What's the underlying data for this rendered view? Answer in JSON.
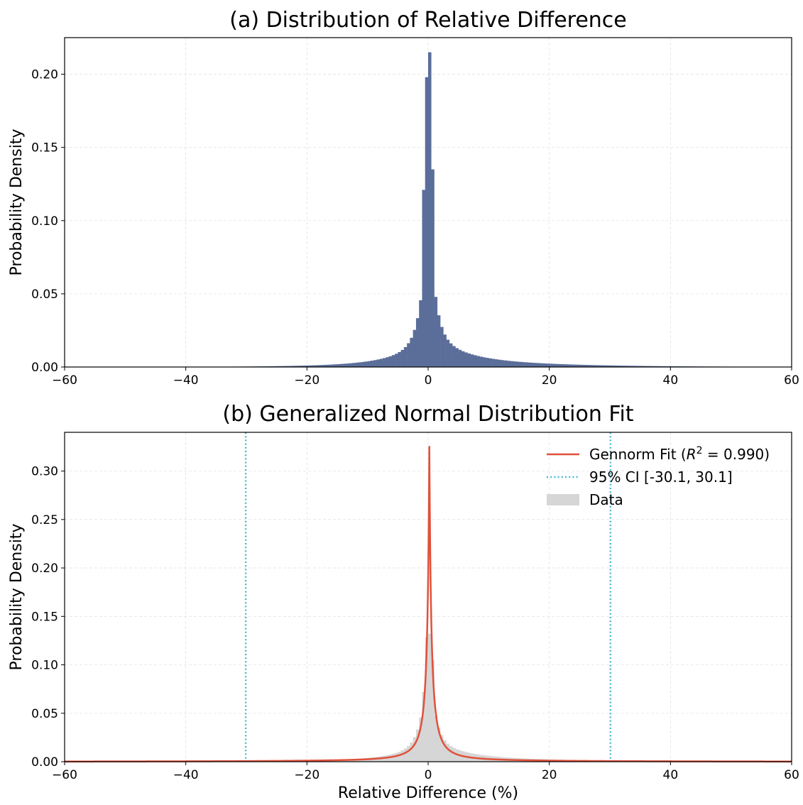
{
  "chart_data": [
    {
      "type": "bar",
      "title": "(a) Distribution of Relative Difference",
      "xlabel": "",
      "ylabel": "Probability Density",
      "xlim": [
        -60,
        60
      ],
      "ylim": [
        0,
        0.225
      ],
      "xticks": [
        -60,
        -40,
        -20,
        0,
        20,
        40,
        60
      ],
      "xtick_labels": [
        "−60",
        "−40",
        "−20",
        "0",
        "20",
        "40",
        "60"
      ],
      "yticks": [
        0.0,
        0.05,
        0.1,
        0.15,
        0.2
      ],
      "ytick_labels": [
        "0.00",
        "0.05",
        "0.10",
        "0.15",
        "0.20"
      ],
      "grid": true,
      "bar_color": "#5b6e9a",
      "hist_range": [
        -36,
        53
      ],
      "bin_width": 0.5,
      "density": "peak 0.215 at 0.25; 0.198 at -0.25; 0.135 at 0.75; 0.121 at -0.75; tails decay to ~0.005 at 20 and ~0.001 at 40"
    },
    {
      "type": "line",
      "title": "(b) Generalized Normal Distribution Fit",
      "xlabel": "Relative Difference (%)",
      "ylabel": "Probability Density",
      "xlim": [
        -60,
        60
      ],
      "ylim": [
        0,
        0.34
      ],
      "xticks": [
        -60,
        -40,
        -20,
        0,
        20,
        40,
        60
      ],
      "xtick_labels": [
        "−60",
        "−40",
        "−20",
        "0",
        "20",
        "40",
        "60"
      ],
      "yticks": [
        0.0,
        0.05,
        0.1,
        0.15,
        0.2,
        0.25,
        0.3
      ],
      "ytick_labels": [
        "0.00",
        "0.05",
        "0.10",
        "0.15",
        "0.20",
        "0.25",
        "0.30"
      ],
      "grid": true,
      "legend_position": "top-right",
      "fit": {
        "name_prefix": "Gennorm Fit (",
        "name_math": "R",
        "name_sup": "2",
        "name_suffix": " = 0.990)",
        "color": "#e0513a",
        "loc": 0.2,
        "peak": 0.324,
        "shape_note": "sharp cusp at 0.2; ~0.05 at ±2.5; ~0.015 at ±8; ~0.005 at ±20"
      },
      "ci": {
        "name": "95% CI [-30.1, 30.1]",
        "lower": -30.1,
        "upper": 30.1,
        "color": "#4ab8d0"
      },
      "data_hist": {
        "name": "Data",
        "color": "#d6d6d6",
        "bin_width": 0.5
      }
    }
  ]
}
